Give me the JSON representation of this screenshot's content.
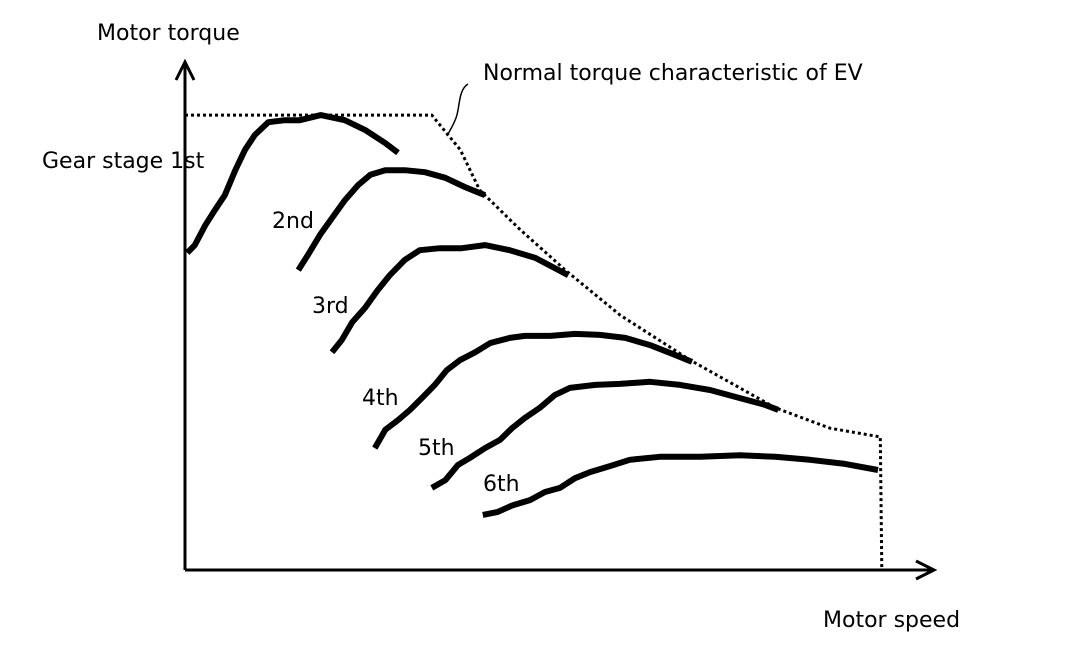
{
  "chart_data": {
    "type": "line",
    "title": "",
    "xlabel": "Motor speed",
    "ylabel": "Motor torque",
    "xlim": [
      0,
      100
    ],
    "ylim": [
      0,
      100
    ],
    "grid": false,
    "annotation": "Normal torque characteristic of EV",
    "envelope": {
      "name": "Normal torque characteristic of EV",
      "style": "dotted",
      "x": [
        0,
        32.9,
        36.7,
        39.3,
        44.7,
        50.7,
        58,
        67.3,
        78.7,
        86,
        92.7,
        92.9
      ],
      "y": [
        89.2,
        89.2,
        82.4,
        74.5,
        66.7,
        58.8,
        50,
        41.2,
        31.8,
        27.8,
        26.1,
        0
      ]
    },
    "series": [
      {
        "name": "Gear stage 1st",
        "x": [
          0.3,
          1.3,
          2.7,
          4,
          5.3,
          6.7,
          8,
          9.3,
          11.1,
          13.3,
          15.3,
          18.1,
          21.3,
          24,
          26.7,
          28.4
        ],
        "y": [
          62.2,
          63.7,
          67.6,
          70.6,
          73.5,
          78.4,
          82.4,
          85.3,
          87.8,
          88.2,
          88.2,
          89.2,
          88.2,
          86.3,
          83.7,
          81.8
        ]
      },
      {
        "name": "2nd",
        "x": [
          15.1,
          16.4,
          18,
          19.6,
          21.3,
          23.1,
          24.7,
          26.7,
          29.3,
          32,
          34.7,
          37.3,
          40
        ],
        "y": [
          58.8,
          61.8,
          65.7,
          69,
          72.5,
          75.5,
          77.5,
          78.4,
          78.4,
          78,
          76.9,
          75.1,
          73.5
        ]
      },
      {
        "name": "3rd",
        "x": [
          19.6,
          20.9,
          22.3,
          24,
          25.7,
          27.3,
          29.3,
          31.3,
          34,
          36.9,
          40,
          43.3,
          46.7,
          49.3,
          51.1
        ],
        "y": [
          42.7,
          45.1,
          48.6,
          51.4,
          54.9,
          57.8,
          60.8,
          62.7,
          63.1,
          63.1,
          63.7,
          62.7,
          61.2,
          59.2,
          57.8
        ]
      },
      {
        "name": "4th",
        "x": [
          25.3,
          26.7,
          28.4,
          30,
          31.7,
          33.3,
          34.9,
          36.7,
          38.7,
          40.7,
          43.3,
          45.3,
          48.7,
          52,
          55.3,
          58.7,
          62,
          65.3,
          67.6
        ],
        "y": [
          23.9,
          27.5,
          29.4,
          31.4,
          33.9,
          36.3,
          39.2,
          41.2,
          42.7,
          44.5,
          45.5,
          45.9,
          45.9,
          46.3,
          46.1,
          45.5,
          44.1,
          42.2,
          40.8
        ]
      },
      {
        "name": "5th",
        "x": [
          32.9,
          34.7,
          36.4,
          38,
          40,
          42,
          43.6,
          45.3,
          47.3,
          49.3,
          51.3,
          54.7,
          58,
          62,
          66,
          70,
          74,
          77.3,
          79.1
        ],
        "y": [
          16.1,
          17.6,
          20.6,
          22,
          23.9,
          25.5,
          27.8,
          29.8,
          31.8,
          34.3,
          35.7,
          36.3,
          36.5,
          36.9,
          36.3,
          35.3,
          33.7,
          32.4,
          31.4
        ]
      },
      {
        "name": "6th",
        "x": [
          39.7,
          41.7,
          43.7,
          46,
          48,
          50,
          52,
          54,
          56.7,
          59.3,
          63.3,
          68.7,
          74,
          78.7,
          83.3,
          88,
          92.4
        ],
        "y": [
          10.8,
          11.4,
          12.7,
          13.7,
          15.3,
          16.1,
          18,
          19.2,
          20.4,
          21.6,
          22.2,
          22.2,
          22.5,
          22.2,
          21.6,
          20.8,
          19.6
        ]
      }
    ]
  }
}
